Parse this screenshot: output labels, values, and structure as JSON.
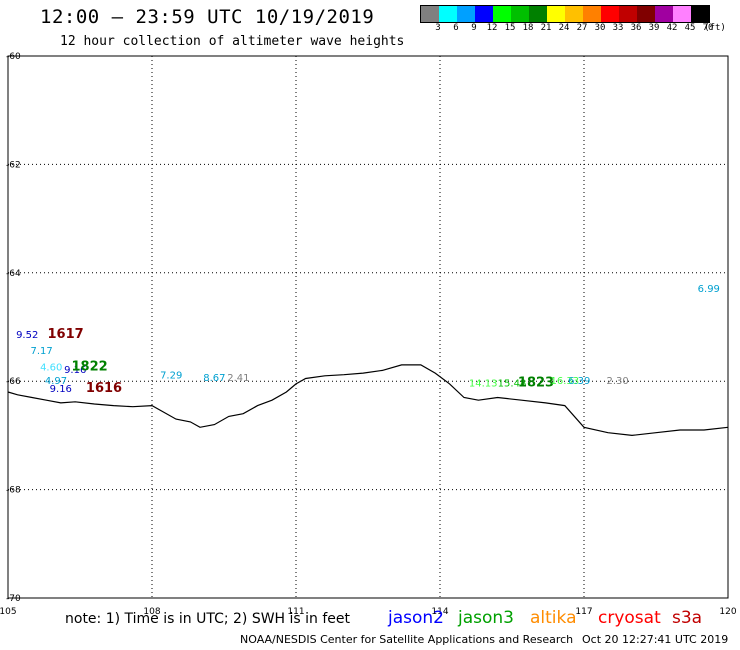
{
  "header": {
    "title": "12:00 – 23:59 UTC 10/19/2019",
    "subtitle": "12 hour collection of altimeter wave heights"
  },
  "legend": {
    "colors": [
      "#808080",
      "#00ffff",
      "#00a0ff",
      "#0000ff",
      "#00ff00",
      "#00c000",
      "#008000",
      "#ffff00",
      "#ffc000",
      "#ff8000",
      "#ff0000",
      "#c00000",
      "#800000",
      "#a000a0",
      "#ff80ff",
      "#000000"
    ],
    "labels": [
      "3",
      "6",
      "9",
      "12",
      "15",
      "18",
      "21",
      "24",
      "27",
      "30",
      "33",
      "36",
      "39",
      "42",
      "45",
      "70",
      "(ft)"
    ]
  },
  "chart_data": {
    "type": "scatter",
    "xlim": [
      105,
      120
    ],
    "ylim": [
      -70,
      -60
    ],
    "x_ticks": [
      "105",
      "108",
      "111",
      "114",
      "117",
      "120"
    ],
    "y_ticks": [
      "-60",
      "-62",
      "-64",
      "-66",
      "-68",
      "-70"
    ],
    "grid": true,
    "observations": [
      {
        "label": "9.52",
        "x": 105.4,
        "y": -65.2,
        "color": "#0000c0"
      },
      {
        "label": "1617",
        "x": 106.2,
        "y": -65.2,
        "color": "#800000"
      },
      {
        "label": "7.17",
        "x": 105.7,
        "y": -65.5,
        "color": "#00a0d0"
      },
      {
        "label": "4.60",
        "x": 105.9,
        "y": -65.8,
        "color": "#40e0ff"
      },
      {
        "label": "9.16",
        "x": 106.4,
        "y": -65.85,
        "color": "#0000c0"
      },
      {
        "label": "1822",
        "x": 106.7,
        "y": -65.8,
        "color": "#008000"
      },
      {
        "label": "4.97",
        "x": 106.0,
        "y": -66.05,
        "color": "#00a0d0"
      },
      {
        "label": "9.16",
        "x": 106.1,
        "y": -66.2,
        "color": "#0000c0"
      },
      {
        "label": "1616",
        "x": 107.0,
        "y": -66.2,
        "color": "#800000"
      },
      {
        "label": "7.29",
        "x": 108.4,
        "y": -65.95,
        "color": "#00a0d0"
      },
      {
        "label": "8.67",
        "x": 109.3,
        "y": -66.0,
        "color": "#00a0d0"
      },
      {
        "label": "2.41",
        "x": 109.8,
        "y": -66.0,
        "color": "#808080"
      },
      {
        "label": "14.13",
        "x": 114.9,
        "y": -66.1,
        "color": "#40ff40"
      },
      {
        "label": "15.48",
        "x": 115.5,
        "y": -66.1,
        "color": "#00c000"
      },
      {
        "label": "1823",
        "x": 116.0,
        "y": -66.1,
        "color": "#008000"
      },
      {
        "label": "16.33",
        "x": 116.6,
        "y": -66.05,
        "color": "#40ff40"
      },
      {
        "label": "6.39",
        "x": 116.9,
        "y": -66.05,
        "color": "#00a0d0"
      },
      {
        "label": "2.30",
        "x": 117.7,
        "y": -66.05,
        "color": "#808080"
      },
      {
        "label": "6.99",
        "x": 119.6,
        "y": -64.35,
        "color": "#00a0d0"
      }
    ],
    "coastline": [
      [
        105.0,
        -66.2
      ],
      [
        105.2,
        -66.25
      ],
      [
        105.5,
        -66.3
      ],
      [
        105.8,
        -66.35
      ],
      [
        106.1,
        -66.4
      ],
      [
        106.4,
        -66.38
      ],
      [
        106.8,
        -66.42
      ],
      [
        107.2,
        -66.45
      ],
      [
        107.6,
        -66.47
      ],
      [
        108.0,
        -66.45
      ],
      [
        108.2,
        -66.55
      ],
      [
        108.5,
        -66.7
      ],
      [
        108.8,
        -66.75
      ],
      [
        109.0,
        -66.85
      ],
      [
        109.3,
        -66.8
      ],
      [
        109.6,
        -66.65
      ],
      [
        109.9,
        -66.6
      ],
      [
        110.2,
        -66.45
      ],
      [
        110.5,
        -66.35
      ],
      [
        110.8,
        -66.2
      ],
      [
        111.0,
        -66.05
      ],
      [
        111.2,
        -65.95
      ],
      [
        111.6,
        -65.9
      ],
      [
        112.0,
        -65.88
      ],
      [
        112.4,
        -65.85
      ],
      [
        112.8,
        -65.8
      ],
      [
        113.2,
        -65.7
      ],
      [
        113.6,
        -65.7
      ],
      [
        113.9,
        -65.85
      ],
      [
        114.2,
        -66.05
      ],
      [
        114.5,
        -66.3
      ],
      [
        114.8,
        -66.35
      ],
      [
        115.2,
        -66.3
      ],
      [
        115.7,
        -66.35
      ],
      [
        116.2,
        -66.4
      ],
      [
        116.6,
        -66.45
      ],
      [
        117.0,
        -66.85
      ],
      [
        117.5,
        -66.95
      ],
      [
        118.0,
        -67.0
      ],
      [
        118.5,
        -66.95
      ],
      [
        119.0,
        -66.9
      ],
      [
        119.5,
        -66.9
      ],
      [
        120.0,
        -66.85
      ]
    ]
  },
  "note": {
    "text": "note: 1) Time is in UTC; 2) SWH is in feet"
  },
  "satellites": [
    {
      "name": "jason2",
      "color": "#0000ff"
    },
    {
      "name": "jason3",
      "color": "#00a000"
    },
    {
      "name": "altika",
      "color": "#ff8c00"
    },
    {
      "name": "cryosat",
      "color": "#ff0000"
    },
    {
      "name": "s3a",
      "color": "#c00000"
    }
  ],
  "footer": {
    "credit": "NOAA/NESDIS Center for Satellite Applications and Research",
    "timestamp": "Oct 20 12:27:41 UTC 2019"
  }
}
